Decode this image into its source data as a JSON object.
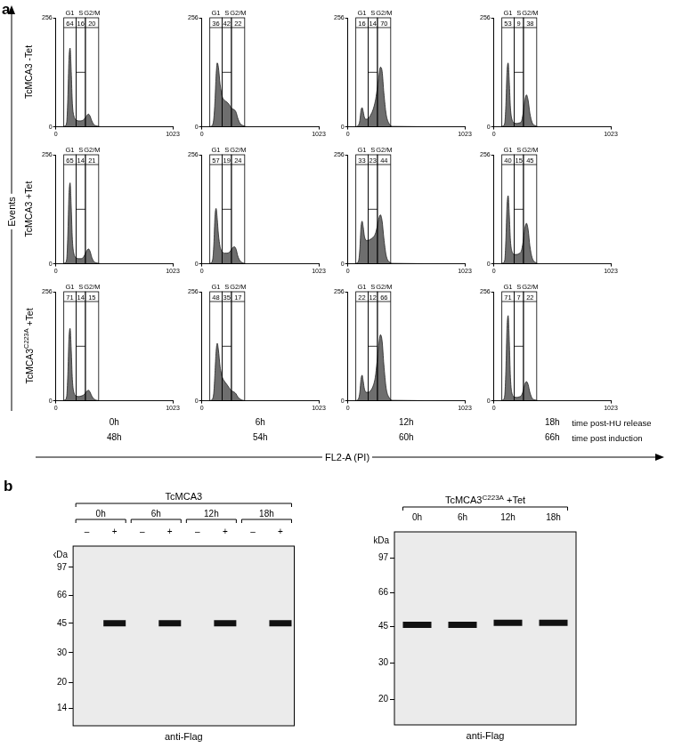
{
  "panel_a": {
    "label": "a",
    "y_axis_label": "Events",
    "x_axis_label": "FL2-A (PI)",
    "row_labels": [
      {
        "text": "TcMCA3",
        "condition": "-Tet"
      },
      {
        "text": "TcMCA3",
        "condition": "+Tet"
      },
      {
        "text": "TcMCA3",
        "superscript": "C223A",
        "condition": "+Tet"
      }
    ],
    "time_axes": [
      {
        "label": "time post-HU release",
        "values": [
          "0h",
          "6h",
          "12h",
          "18h"
        ]
      },
      {
        "label": "time post induction",
        "values": [
          "48h",
          "54h",
          "60h",
          "66h"
        ]
      }
    ]
  },
  "chart_data": [
    {
      "type": "area",
      "color": "#6e6e6e",
      "grid": false,
      "x": [
        0,
        60,
        80,
        95,
        105,
        115,
        125,
        135,
        145,
        160,
        180,
        200,
        220,
        240,
        255,
        270,
        285,
        300,
        315,
        335,
        360,
        400,
        1023
      ],
      "values": [
        0,
        0,
        2,
        10,
        65,
        157,
        185,
        130,
        55,
        24,
        16,
        14,
        14,
        16,
        20,
        26,
        30,
        25,
        14,
        5,
        2,
        0,
        0
      ],
      "xlim": [
        0,
        1023
      ],
      "xticks": [
        0,
        1023
      ],
      "ylim": [
        0,
        256
      ],
      "yticks": [
        0,
        256
      ],
      "gates": [
        {
          "name": "G1",
          "range": [
            70,
            177
          ],
          "percent": 64
        },
        {
          "name": "S",
          "range": [
            177,
            259
          ],
          "percent": 16
        },
        {
          "name": "G2/M",
          "range": [
            259,
            375
          ],
          "percent": 20
        }
      ]
    },
    {
      "type": "area",
      "color": "#6e6e6e",
      "grid": false,
      "x": [
        0,
        60,
        80,
        95,
        105,
        115,
        125,
        135,
        145,
        160,
        180,
        200,
        220,
        240,
        255,
        270,
        285,
        300,
        315,
        335,
        360,
        400,
        1023
      ],
      "values": [
        0,
        0,
        1,
        5,
        20,
        60,
        120,
        150,
        140,
        100,
        70,
        62,
        58,
        52,
        45,
        42,
        40,
        34,
        20,
        8,
        3,
        0,
        0
      ],
      "xlim": [
        0,
        1023
      ],
      "xticks": [
        0,
        1023
      ],
      "ylim": [
        0,
        256
      ],
      "yticks": [
        0,
        256
      ],
      "gates": [
        {
          "name": "G1",
          "range": [
            70,
            177
          ],
          "percent": 36
        },
        {
          "name": "S",
          "range": [
            177,
            259
          ],
          "percent": 42
        },
        {
          "name": "G2/M",
          "range": [
            259,
            375
          ],
          "percent": 22
        }
      ]
    },
    {
      "type": "area",
      "color": "#6e6e6e",
      "grid": false,
      "x": [
        0,
        60,
        80,
        95,
        105,
        115,
        125,
        135,
        145,
        160,
        180,
        200,
        220,
        240,
        255,
        270,
        285,
        300,
        315,
        335,
        360,
        400,
        1023
      ],
      "values": [
        0,
        0,
        1,
        5,
        15,
        38,
        45,
        35,
        22,
        18,
        20,
        28,
        40,
        60,
        85,
        115,
        140,
        130,
        80,
        30,
        8,
        1,
        0
      ],
      "xlim": [
        0,
        1023
      ],
      "xticks": [
        0,
        1023
      ],
      "ylim": [
        0,
        256
      ],
      "yticks": [
        0,
        256
      ],
      "gates": [
        {
          "name": "G1",
          "range": [
            70,
            177
          ],
          "percent": 16
        },
        {
          "name": "S",
          "range": [
            177,
            259
          ],
          "percent": 14
        },
        {
          "name": "G2/M",
          "range": [
            259,
            375
          ],
          "percent": 70
        }
      ]
    },
    {
      "type": "area",
      "color": "#6e6e6e",
      "grid": false,
      "x": [
        0,
        60,
        80,
        95,
        105,
        115,
        125,
        135,
        145,
        160,
        180,
        200,
        220,
        240,
        255,
        270,
        285,
        300,
        315,
        335,
        360,
        400,
        1023
      ],
      "values": [
        0,
        0,
        2,
        8,
        50,
        128,
        150,
        105,
        45,
        16,
        9,
        8,
        9,
        12,
        30,
        60,
        75,
        62,
        32,
        10,
        3,
        0,
        0
      ],
      "xlim": [
        0,
        1023
      ],
      "xticks": [
        0,
        1023
      ],
      "ylim": [
        0,
        256
      ],
      "yticks": [
        0,
        256
      ],
      "gates": [
        {
          "name": "G1",
          "range": [
            70,
            177
          ],
          "percent": 53
        },
        {
          "name": "S",
          "range": [
            177,
            259
          ],
          "percent": 9
        },
        {
          "name": "G2/M",
          "range": [
            259,
            375
          ],
          "percent": 38
        }
      ]
    },
    {
      "type": "area",
      "color": "#6e6e6e",
      "grid": false,
      "x": [
        0,
        60,
        80,
        95,
        105,
        115,
        125,
        135,
        145,
        160,
        180,
        200,
        220,
        240,
        255,
        270,
        285,
        300,
        315,
        335,
        360,
        400,
        1023
      ],
      "values": [
        0,
        0,
        2,
        10,
        66,
        160,
        190,
        133,
        57,
        22,
        14,
        12,
        12,
        15,
        22,
        30,
        35,
        29,
        15,
        5,
        2,
        0,
        0
      ],
      "xlim": [
        0,
        1023
      ],
      "xticks": [
        0,
        1023
      ],
      "ylim": [
        0,
        256
      ],
      "yticks": [
        0,
        256
      ],
      "gates": [
        {
          "name": "G1",
          "range": [
            70,
            177
          ],
          "percent": 65
        },
        {
          "name": "S",
          "range": [
            177,
            259
          ],
          "percent": 14
        },
        {
          "name": "G2/M",
          "range": [
            259,
            375
          ],
          "percent": 21
        }
      ]
    },
    {
      "type": "area",
      "color": "#6e6e6e",
      "grid": false,
      "x": [
        0,
        60,
        80,
        95,
        105,
        115,
        125,
        135,
        145,
        160,
        180,
        200,
        220,
        240,
        255,
        270,
        285,
        300,
        315,
        335,
        360,
        400,
        1023
      ],
      "values": [
        0,
        0,
        2,
        10,
        45,
        110,
        130,
        105,
        70,
        40,
        28,
        25,
        25,
        27,
        32,
        38,
        40,
        34,
        18,
        7,
        2,
        0,
        0
      ],
      "xlim": [
        0,
        1023
      ],
      "xticks": [
        0,
        1023
      ],
      "ylim": [
        0,
        256
      ],
      "yticks": [
        0,
        256
      ],
      "gates": [
        {
          "name": "G1",
          "range": [
            70,
            177
          ],
          "percent": 57
        },
        {
          "name": "S",
          "range": [
            177,
            259
          ],
          "percent": 19
        },
        {
          "name": "G2/M",
          "range": [
            259,
            375
          ],
          "percent": 24
        }
      ]
    },
    {
      "type": "area",
      "color": "#6e6e6e",
      "grid": false,
      "x": [
        0,
        60,
        80,
        95,
        105,
        115,
        125,
        135,
        145,
        160,
        180,
        200,
        220,
        240,
        255,
        270,
        285,
        300,
        315,
        335,
        360,
        400,
        1023
      ],
      "values": [
        0,
        0,
        2,
        8,
        35,
        85,
        100,
        85,
        65,
        55,
        55,
        58,
        62,
        70,
        85,
        105,
        115,
        100,
        60,
        20,
        5,
        1,
        0
      ],
      "xlim": [
        0,
        1023
      ],
      "xticks": [
        0,
        1023
      ],
      "ylim": [
        0,
        256
      ],
      "yticks": [
        0,
        256
      ],
      "gates": [
        {
          "name": "G1",
          "range": [
            70,
            177
          ],
          "percent": 33
        },
        {
          "name": "S",
          "range": [
            177,
            259
          ],
          "percent": 23
        },
        {
          "name": "G2/M",
          "range": [
            259,
            375
          ],
          "percent": 44
        }
      ]
    },
    {
      "type": "area",
      "color": "#6e6e6e",
      "grid": false,
      "x": [
        0,
        60,
        80,
        95,
        105,
        115,
        125,
        135,
        145,
        160,
        180,
        200,
        220,
        240,
        255,
        270,
        285,
        300,
        315,
        335,
        360,
        400,
        1023
      ],
      "values": [
        0,
        0,
        2,
        8,
        55,
        135,
        160,
        115,
        55,
        28,
        22,
        22,
        24,
        30,
        50,
        82,
        95,
        80,
        42,
        14,
        4,
        0,
        0
      ],
      "xlim": [
        0,
        1023
      ],
      "xticks": [
        0,
        1023
      ],
      "ylim": [
        0,
        256
      ],
      "yticks": [
        0,
        256
      ],
      "gates": [
        {
          "name": "G1",
          "range": [
            70,
            177
          ],
          "percent": 40
        },
        {
          "name": "S",
          "range": [
            177,
            259
          ],
          "percent": 15
        },
        {
          "name": "G2/M",
          "range": [
            259,
            375
          ],
          "percent": 45
        }
      ]
    },
    {
      "type": "area",
      "color": "#6e6e6e",
      "grid": false,
      "x": [
        0,
        60,
        80,
        95,
        105,
        115,
        125,
        135,
        145,
        160,
        180,
        200,
        220,
        240,
        255,
        270,
        285,
        300,
        315,
        335,
        360,
        400,
        1023
      ],
      "values": [
        0,
        0,
        2,
        10,
        60,
        145,
        170,
        120,
        50,
        18,
        11,
        10,
        11,
        13,
        17,
        22,
        25,
        20,
        11,
        4,
        1,
        0,
        0
      ],
      "xlim": [
        0,
        1023
      ],
      "xticks": [
        0,
        1023
      ],
      "ylim": [
        0,
        256
      ],
      "yticks": [
        0,
        256
      ],
      "gates": [
        {
          "name": "G1",
          "range": [
            70,
            177
          ],
          "percent": 71
        },
        {
          "name": "S",
          "range": [
            177,
            259
          ],
          "percent": 14
        },
        {
          "name": "G2/M",
          "range": [
            259,
            375
          ],
          "percent": 15
        }
      ]
    },
    {
      "type": "area",
      "color": "#6e6e6e",
      "grid": false,
      "x": [
        0,
        60,
        80,
        95,
        105,
        115,
        125,
        135,
        145,
        160,
        180,
        200,
        220,
        240,
        255,
        270,
        285,
        300,
        315,
        335,
        360,
        400,
        1023
      ],
      "values": [
        0,
        0,
        1,
        5,
        20,
        65,
        115,
        135,
        120,
        80,
        55,
        45,
        38,
        30,
        25,
        22,
        20,
        16,
        9,
        4,
        1,
        0,
        0
      ],
      "xlim": [
        0,
        1023
      ],
      "xticks": [
        0,
        1023
      ],
      "ylim": [
        0,
        256
      ],
      "yticks": [
        0,
        256
      ],
      "gates": [
        {
          "name": "G1",
          "range": [
            70,
            177
          ],
          "percent": 48
        },
        {
          "name": "S",
          "range": [
            177,
            259
          ],
          "percent": 35
        },
        {
          "name": "G2/M",
          "range": [
            259,
            375
          ],
          "percent": 17
        }
      ]
    },
    {
      "type": "area",
      "color": "#6e6e6e",
      "grid": false,
      "x": [
        0,
        60,
        80,
        95,
        105,
        115,
        125,
        135,
        145,
        160,
        180,
        200,
        220,
        240,
        255,
        270,
        285,
        300,
        315,
        335,
        360,
        400,
        1023
      ],
      "values": [
        0,
        0,
        1,
        6,
        20,
        50,
        60,
        45,
        28,
        20,
        20,
        24,
        34,
        55,
        90,
        130,
        155,
        140,
        85,
        30,
        8,
        1,
        0
      ],
      "xlim": [
        0,
        1023
      ],
      "xticks": [
        0,
        1023
      ],
      "ylim": [
        0,
        256
      ],
      "yticks": [
        0,
        256
      ],
      "gates": [
        {
          "name": "G1",
          "range": [
            70,
            177
          ],
          "percent": 22
        },
        {
          "name": "S",
          "range": [
            177,
            259
          ],
          "percent": 12
        },
        {
          "name": "G2/M",
          "range": [
            259,
            375
          ],
          "percent": 66
        }
      ]
    },
    {
      "type": "area",
      "color": "#6e6e6e",
      "grid": false,
      "x": [
        0,
        60,
        80,
        95,
        105,
        115,
        125,
        135,
        145,
        160,
        180,
        200,
        220,
        240,
        255,
        270,
        285,
        300,
        315,
        335,
        360,
        400,
        1023
      ],
      "values": [
        0,
        0,
        2,
        12,
        70,
        170,
        200,
        140,
        55,
        16,
        9,
        8,
        9,
        12,
        22,
        38,
        45,
        38,
        20,
        6,
        2,
        0,
        0
      ],
      "xlim": [
        0,
        1023
      ],
      "xticks": [
        0,
        1023
      ],
      "ylim": [
        0,
        256
      ],
      "yticks": [
        0,
        256
      ],
      "gates": [
        {
          "name": "G1",
          "range": [
            70,
            177
          ],
          "percent": 71
        },
        {
          "name": "S",
          "range": [
            177,
            259
          ],
          "percent": 7
        },
        {
          "name": "G2/M",
          "range": [
            259,
            375
          ],
          "percent": 22
        }
      ]
    }
  ],
  "panel_b": {
    "label": "b",
    "blots": [
      {
        "type": "scatter",
        "log": "y",
        "color": "#111111",
        "header": {
          "text": "TcMCA3"
        },
        "groups": [
          "0h",
          "6h",
          "12h",
          "18h"
        ],
        "categories": [
          "–",
          "+",
          "–",
          "+",
          "–",
          "+",
          "–",
          "+"
        ],
        "values": [
          null,
          45,
          null,
          45,
          null,
          45,
          null,
          45
        ],
        "ylim": [
          11,
          130
        ],
        "yticks": [
          14,
          20,
          30,
          45,
          66,
          97
        ],
        "y_axis_label": "kDa",
        "caption": "anti-Flag"
      },
      {
        "type": "scatter",
        "log": "y",
        "color": "#111111",
        "header": {
          "text": "TcMCA3",
          "superscript": "C223A",
          "condition": "+Tet"
        },
        "categories": [
          "0h",
          "6h",
          "12h",
          "18h"
        ],
        "values": [
          46,
          46,
          47,
          47
        ],
        "ylim": [
          15,
          130
        ],
        "yticks": [
          20,
          30,
          45,
          66,
          97
        ],
        "y_axis_label": "kDa",
        "caption": "anti-Flag"
      }
    ]
  }
}
